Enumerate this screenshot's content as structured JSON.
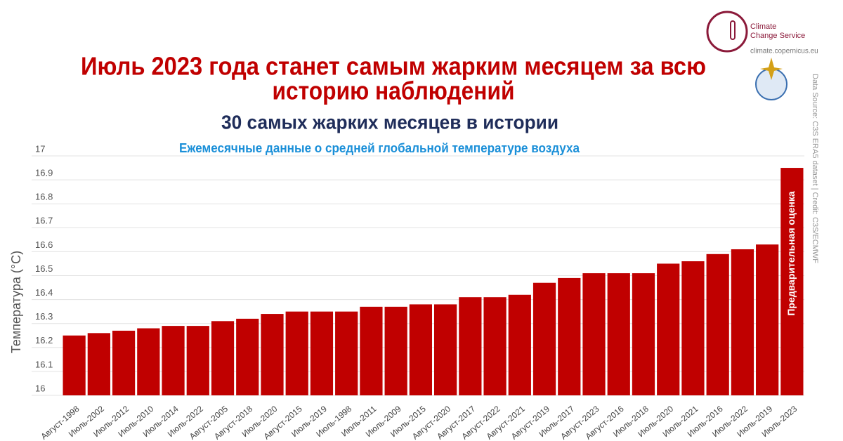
{
  "chart_data": {
    "type": "bar",
    "title": [
      "Июль 2023 года станет самым жарким месяцем за всю",
      "историю наблюдений"
    ],
    "subtitle": "30 самых жарких месяцев в истории",
    "caption": "Ежемесячные данные о средней глобальной температуре воздуха",
    "y_label": "Температура (°C)",
    "annotation": "Предварительная оценка",
    "color": "#c00000",
    "categories": [
      "Август-1998",
      "Июль-2002",
      "Июль-2012",
      "Июль-2010",
      "Июль-2014",
      "Июль-2022",
      "Август-2005",
      "Август-2018",
      "Июль-2020",
      "Август-2015",
      "Июль-2019",
      "Июль-1998",
      "Июль-2011",
      "Июль-2009",
      "Июль-2015",
      "Август-2020",
      "Август-2017",
      "Август-2022",
      "Август-2021",
      "Август-2019",
      "Июль-2017",
      "Август-2023",
      "Август-2016",
      "Июль-2018",
      "Июль-2020",
      "Июль-2021",
      "Июль-2016",
      "Июль-2022",
      "Июль-2019",
      "Июль-2023"
    ],
    "values": [
      16.25,
      16.26,
      16.27,
      16.28,
      16.29,
      16.29,
      16.31,
      16.32,
      16.34,
      16.35,
      16.35,
      16.35,
      16.37,
      16.37,
      16.38,
      16.38,
      16.41,
      16.41,
      16.42,
      16.47,
      16.49,
      16.51,
      16.51,
      16.51,
      16.55,
      16.56,
      16.59,
      16.61,
      16.63,
      16.95
    ],
    "ylim": [
      16,
      17
    ],
    "yticks": [
      16,
      16.1,
      16.2,
      16.3,
      16.4,
      16.5,
      16.6,
      16.7,
      16.8,
      16.9,
      17
    ],
    "grid": true
  },
  "logo": {
    "name": [
      "Climate",
      "Change Service"
    ],
    "url": "climate.copernicus.eu"
  },
  "credit": "Data Source: C3S ERA5 dataset | Credit: C3S/ECMWF"
}
